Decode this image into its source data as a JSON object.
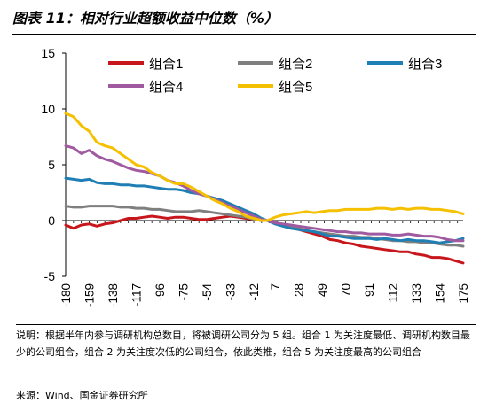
{
  "figure": {
    "title": "图表 11：相对行业超额收益中位数（%）",
    "note": "说明：根据半年内参与调研机构总数目，将被调研公司分为 5 组。组合 1 为关注度最低、调研机构数目最少的公司组合，组合 2 为关注度次低的公司组合，依此类推，组合 5 为关注度最高的公司组合",
    "source": "来源：Wind、国金证券研究所"
  },
  "chart_data": {
    "type": "line",
    "title": "",
    "xlabel": "",
    "ylabel": "",
    "ylim": [
      -5,
      15
    ],
    "yticks": [
      -5,
      0,
      5,
      10,
      15
    ],
    "xlim": [
      -180,
      175
    ],
    "xticks": [
      -180,
      -159,
      -138,
      -117,
      -96,
      -75,
      -54,
      -33,
      -12,
      7,
      28,
      49,
      70,
      91,
      112,
      133,
      154,
      175
    ],
    "grid": false,
    "legend": "top",
    "series": [
      {
        "name": "组合1",
        "color": "#c8161d",
        "x": [
          -180,
          -173,
          -166,
          -159,
          -152,
          -145,
          -138,
          -131,
          -124,
          -117,
          -110,
          -103,
          -96,
          -89,
          -82,
          -75,
          -68,
          -61,
          -54,
          -47,
          -40,
          -33,
          -26,
          -19,
          -12,
          -5,
          0,
          7,
          14,
          21,
          28,
          35,
          42,
          49,
          56,
          63,
          70,
          77,
          84,
          91,
          98,
          105,
          112,
          119,
          126,
          133,
          140,
          147,
          154,
          161,
          168,
          175
        ],
        "y": [
          -0.4,
          -0.7,
          -0.4,
          -0.3,
          -0.5,
          -0.3,
          -0.2,
          0.0,
          0.2,
          0.2,
          0.3,
          0.4,
          0.3,
          0.2,
          0.3,
          0.3,
          0.2,
          0.1,
          0.1,
          0.2,
          0.3,
          0.4,
          0.3,
          0.2,
          0.1,
          0.0,
          0.0,
          -0.2,
          -0.4,
          -0.6,
          -0.8,
          -1.0,
          -1.2,
          -1.4,
          -1.7,
          -1.8,
          -2.0,
          -2.1,
          -2.3,
          -2.4,
          -2.5,
          -2.6,
          -2.7,
          -2.8,
          -2.8,
          -3.0,
          -3.1,
          -3.3,
          -3.3,
          -3.4,
          -3.6,
          -3.8
        ]
      },
      {
        "name": "组合2",
        "color": "#7f7f7f",
        "x": [
          -180,
          -173,
          -166,
          -159,
          -152,
          -145,
          -138,
          -131,
          -124,
          -117,
          -110,
          -103,
          -96,
          -89,
          -82,
          -75,
          -68,
          -61,
          -54,
          -47,
          -40,
          -33,
          -26,
          -19,
          -12,
          -5,
          0,
          7,
          14,
          21,
          28,
          35,
          42,
          49,
          56,
          63,
          70,
          77,
          84,
          91,
          98,
          105,
          112,
          119,
          126,
          133,
          140,
          147,
          154,
          161,
          168,
          175
        ],
        "y": [
          1.3,
          1.2,
          1.2,
          1.3,
          1.3,
          1.3,
          1.3,
          1.2,
          1.2,
          1.1,
          1.1,
          1.0,
          1.0,
          0.9,
          0.8,
          0.8,
          0.8,
          0.9,
          0.8,
          0.7,
          0.6,
          0.5,
          0.4,
          0.3,
          0.1,
          0.0,
          0.0,
          -0.2,
          -0.4,
          -0.5,
          -0.7,
          -0.9,
          -1.0,
          -1.1,
          -1.2,
          -1.3,
          -1.4,
          -1.4,
          -1.5,
          -1.5,
          -1.6,
          -1.7,
          -1.8,
          -1.8,
          -1.9,
          -1.9,
          -2.0,
          -2.0,
          -2.1,
          -2.2,
          -2.2,
          -2.3
        ]
      },
      {
        "name": "组合3",
        "color": "#1f7fb4",
        "x": [
          -180,
          -173,
          -166,
          -159,
          -152,
          -145,
          -138,
          -131,
          -124,
          -117,
          -110,
          -103,
          -96,
          -89,
          -82,
          -75,
          -68,
          -61,
          -54,
          -47,
          -40,
          -33,
          -26,
          -19,
          -12,
          -5,
          0,
          7,
          14,
          21,
          28,
          35,
          42,
          49,
          56,
          63,
          70,
          77,
          84,
          91,
          98,
          105,
          112,
          119,
          126,
          133,
          140,
          147,
          154,
          161,
          168,
          175
        ],
        "y": [
          3.8,
          3.7,
          3.6,
          3.7,
          3.4,
          3.3,
          3.3,
          3.2,
          3.2,
          3.1,
          3.1,
          3.0,
          2.9,
          2.8,
          2.8,
          2.7,
          2.5,
          2.4,
          2.2,
          2.0,
          1.8,
          1.5,
          1.2,
          0.9,
          0.6,
          0.2,
          0.0,
          -0.3,
          -0.5,
          -0.7,
          -0.8,
          -0.9,
          -1.0,
          -1.2,
          -1.4,
          -1.4,
          -1.5,
          -1.6,
          -1.6,
          -1.6,
          -1.7,
          -1.6,
          -1.7,
          -1.8,
          -1.7,
          -1.8,
          -1.8,
          -1.9,
          -2.0,
          -1.9,
          -1.8,
          -1.6
        ]
      },
      {
        "name": "组合4",
        "color": "#a05aa0",
        "x": [
          -180,
          -173,
          -166,
          -159,
          -152,
          -145,
          -138,
          -131,
          -124,
          -117,
          -110,
          -103,
          -96,
          -89,
          -82,
          -75,
          -68,
          -61,
          -54,
          -47,
          -40,
          -33,
          -26,
          -19,
          -12,
          -5,
          0,
          7,
          14,
          21,
          28,
          35,
          42,
          49,
          56,
          63,
          70,
          77,
          84,
          91,
          98,
          105,
          112,
          119,
          126,
          133,
          140,
          147,
          154,
          161,
          168,
          175
        ],
        "y": [
          6.7,
          6.5,
          6.0,
          6.3,
          5.8,
          5.5,
          5.3,
          5.0,
          4.7,
          4.5,
          4.4,
          4.2,
          4.0,
          3.6,
          3.4,
          3.1,
          2.7,
          2.4,
          2.2,
          1.9,
          1.6,
          1.3,
          1.0,
          0.7,
          0.4,
          0.1,
          0.0,
          -0.2,
          -0.3,
          -0.4,
          -0.5,
          -0.6,
          -0.7,
          -0.8,
          -0.9,
          -1.0,
          -1.0,
          -1.1,
          -1.1,
          -1.2,
          -1.2,
          -1.2,
          -1.3,
          -1.3,
          -1.2,
          -1.3,
          -1.4,
          -1.4,
          -1.5,
          -1.7,
          -1.8,
          -1.8
        ]
      },
      {
        "name": "组合5",
        "color": "#f5c000",
        "x": [
          -180,
          -173,
          -166,
          -159,
          -152,
          -145,
          -138,
          -131,
          -124,
          -117,
          -110,
          -103,
          -96,
          -89,
          -82,
          -75,
          -68,
          -61,
          -54,
          -47,
          -40,
          -33,
          -26,
          -19,
          -12,
          -5,
          0,
          7,
          14,
          21,
          28,
          35,
          42,
          49,
          56,
          63,
          70,
          77,
          84,
          91,
          98,
          105,
          112,
          119,
          126,
          133,
          140,
          147,
          154,
          161,
          168,
          175
        ],
        "y": [
          9.6,
          9.3,
          8.5,
          8.0,
          7.0,
          6.7,
          6.5,
          6.0,
          5.5,
          5.0,
          4.8,
          4.3,
          4.0,
          3.6,
          3.3,
          3.3,
          3.0,
          2.6,
          2.2,
          1.8,
          1.5,
          1.1,
          0.8,
          0.4,
          0.2,
          0.0,
          0.0,
          0.3,
          0.5,
          0.6,
          0.7,
          0.8,
          0.7,
          0.8,
          0.9,
          0.9,
          1.0,
          1.0,
          1.0,
          1.0,
          1.1,
          1.1,
          1.0,
          1.1,
          1.0,
          1.1,
          1.1,
          1.0,
          1.0,
          0.9,
          0.8,
          0.6
        ]
      }
    ]
  }
}
